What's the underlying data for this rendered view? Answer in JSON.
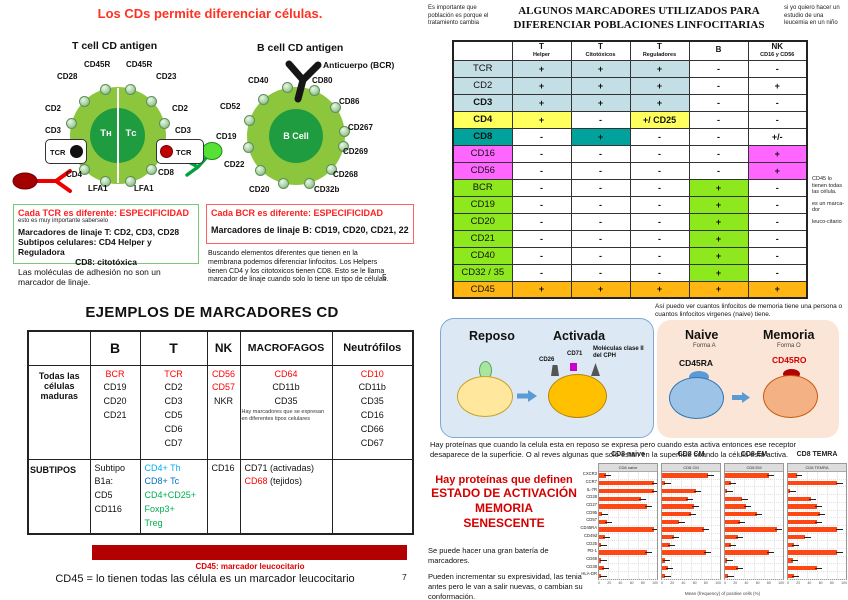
{
  "colors": {
    "title_red": "#ff3222",
    "accent_red": "#d40000",
    "cell_green": "#8cc63c",
    "cell_core_green": "#1f9b40",
    "bar_orange": "#ff4713",
    "dark_red_bar": "#b30000"
  },
  "page_left": {
    "title": "Los CDs permite diferenciar células.",
    "t_cell": {
      "heading": "T cell CD antigen",
      "center_left": "Tʜ",
      "center_right": "Tᴄ",
      "tcr_label": "TCR",
      "ring_labels": [
        "CD45R",
        "CD45R",
        "CD28",
        "CD23",
        "CD2",
        "CD2",
        "CD3",
        "CD3"
      ],
      "bottom_labels": [
        "CD4",
        "CD8",
        "LFA1",
        "LFA1"
      ]
    },
    "b_cell": {
      "heading": "B cell CD antigen",
      "antibody_label": "Anticuerpo (BCR)",
      "center": "B Cell",
      "ring_labels": [
        "CD40",
        "CD80",
        "CD52",
        "CD86",
        "CD19",
        "CD267",
        "CD269",
        "CD22",
        "CD268",
        "CD20",
        "CD32b"
      ]
    },
    "tcr_box": {
      "title": "Cada TCR es diferente: ESPECIFICIDAD",
      "subtitle": "esto es muy importante saberselo",
      "line1": "Marcadores de linaje T: CD2, CD3, CD28",
      "line2": "Subtipos celulares: CD4 Helper y Reguladora",
      "line3": "CD8: citotóxica"
    },
    "bcr_box": {
      "title": "Cada BCR es diferente: ESPECIFICIDAD",
      "line1": "Marcadores de linaje B: CD19, CD20, CD21, 22"
    },
    "adhesion_note": "Las moléculas de adhesión no son un marcador de linaje.",
    "buscando_note": "Buscando elementos diferentes que tienen en la membrana podemos diferenciar linfocitos. Los Helpers tienen CD4 y los citotoxicos tienen CD8. Esto se le llama marcador de linaje cuando solo lo tiene un tipo de células.",
    "page_number_5": "5",
    "ejemplos_title": "EJEMPLOS DE MARCADORES CD",
    "ejemplos_table": {
      "columns": [
        "",
        "B",
        "T",
        "NK",
        "MACROFAGOS",
        "Neutrófilos"
      ],
      "rows": [
        {
          "label": "Todas las células maduras",
          "cells": [
            [
              {
                "t": "BCR",
                "c": "red"
              },
              {
                "t": "CD19"
              },
              {
                "t": "CD20"
              },
              {
                "t": "CD21"
              }
            ],
            [
              {
                "t": "TCR",
                "c": "red"
              },
              {
                "t": "CD2"
              },
              {
                "t": "CD3"
              },
              {
                "t": "CD5"
              },
              {
                "t": "CD6"
              },
              {
                "t": "CD7"
              }
            ],
            [
              {
                "t": "CD56",
                "c": "red"
              },
              {
                "t": "CD57",
                "c": "red"
              },
              {
                "t": "NKR"
              }
            ],
            [
              {
                "t": "CD64",
                "c": "red"
              },
              {
                "t": "CD11b"
              },
              {
                "t": "CD35"
              },
              {
                "t": "Hay marcadores que se expresan en diferentes tipos celulares",
                "c": "note"
              }
            ],
            [
              {
                "t": "CD10",
                "c": "red"
              },
              {
                "t": "CD11b"
              },
              {
                "t": "CD35"
              },
              {
                "t": "CD16"
              },
              {
                "t": "CD66"
              },
              {
                "t": "CD67"
              }
            ]
          ]
        },
        {
          "label": "SUBTIPOS",
          "cells": [
            [
              {
                "t": "Subtipo"
              },
              {
                "t": "B1a:"
              },
              {
                "t": "CD5"
              },
              {
                "t": "CD116"
              }
            ],
            [
              {
                "t": "CD4+ Th",
                "c": "cyan"
              },
              {
                "t": "CD8+ Tc",
                "c": "blue"
              },
              {
                "t": "CD4+CD25+",
                "c": "green"
              },
              {
                "t": "Foxp3+",
                "c": "green"
              },
              {
                "t": "Treg",
                "c": "green"
              }
            ],
            [
              {
                "t": "CD16"
              }
            ],
            [
              {
                "t": "CD71 (activadas)"
              },
              {
                "parts": [
                  {
                    "t": "CD68",
                    "c": "red"
                  },
                  {
                    "t": " (tejidos)"
                  }
                ]
              }
            ],
            []
          ]
        }
      ]
    },
    "cd45_red_caption": "CD45: marcador leucocitario",
    "cd45_caption": "CD45 = lo tienen todas las célula es un marcador leucocitario",
    "page_number_7": "7"
  },
  "page_right": {
    "note_left": "Es importante que población es porque el tratamiento cambia",
    "title": "ALGUNOS MARCADORES UTILIZADOS PARA DIFERENCIAR POBLACIONES LINFOCITARIAS",
    "note_right": "si yo quiero hacer un estudio de una leucemia en un niño",
    "marker_table": {
      "headers": [
        {
          "top": "T",
          "bottom": "Helper"
        },
        {
          "top": "T",
          "bottom": "Citotóxicos"
        },
        {
          "top": "T",
          "bottom": "Reguladores"
        },
        {
          "top": "B",
          "bottom": ""
        },
        {
          "top": "NK",
          "bottom": "CD16 y CD56"
        }
      ],
      "rows": [
        {
          "label": "TCR",
          "lbg": "blue",
          "cells": [
            {
              "t": "+",
              "bg": "blue"
            },
            {
              "t": "+",
              "bg": "blue"
            },
            {
              "t": "+",
              "bg": "blue"
            },
            {
              "t": "-"
            },
            {
              "t": "-"
            }
          ]
        },
        {
          "label": "CD2",
          "lbg": "blue",
          "cells": [
            {
              "t": "+",
              "bg": "blue"
            },
            {
              "t": "+",
              "bg": "blue"
            },
            {
              "t": "+",
              "bg": "blue"
            },
            {
              "t": "-"
            },
            {
              "t": "+"
            }
          ]
        },
        {
          "label": "CD3",
          "bold": true,
          "lbg": "blue",
          "cells": [
            {
              "t": "+",
              "bg": "blue"
            },
            {
              "t": "+",
              "bg": "blue"
            },
            {
              "t": "+",
              "bg": "blue"
            },
            {
              "t": "-"
            },
            {
              "t": "-"
            }
          ]
        },
        {
          "label": "CD4",
          "bold": true,
          "lbg": "yellow",
          "cells": [
            {
              "t": "+",
              "bg": "yellow"
            },
            {
              "t": "-"
            },
            {
              "t": "+/ CD25",
              "bg": "yellow"
            },
            {
              "t": "-"
            },
            {
              "t": "-"
            }
          ]
        },
        {
          "label": "CD8",
          "bold": true,
          "lbg": "teal",
          "cells": [
            {
              "t": "-"
            },
            {
              "t": "+",
              "bg": "teal"
            },
            {
              "t": "-"
            },
            {
              "t": "-"
            },
            {
              "t": "+/-"
            }
          ]
        },
        {
          "label": "CD16",
          "lbg": "magenta",
          "cells": [
            {
              "t": "-"
            },
            {
              "t": "-"
            },
            {
              "t": "-"
            },
            {
              "t": "-"
            },
            {
              "t": "+",
              "bg": "magenta"
            }
          ]
        },
        {
          "label": "CD56",
          "lbg": "magenta",
          "cells": [
            {
              "t": "-"
            },
            {
              "t": "-"
            },
            {
              "t": "-"
            },
            {
              "t": "-"
            },
            {
              "t": "+",
              "bg": "magenta"
            }
          ]
        },
        {
          "label": "BCR",
          "lbg": "green",
          "cells": [
            {
              "t": "-"
            },
            {
              "t": "-"
            },
            {
              "t": "-"
            },
            {
              "t": "+",
              "bg": "green"
            },
            {
              "t": "-"
            }
          ]
        },
        {
          "label": "CD19",
          "lbg": "green",
          "cells": [
            {
              "t": "-"
            },
            {
              "t": "-"
            },
            {
              "t": "-"
            },
            {
              "t": "+",
              "bg": "green"
            },
            {
              "t": "-"
            }
          ]
        },
        {
          "label": "CD20",
          "lbg": "green",
          "cells": [
            {
              "t": "-"
            },
            {
              "t": "-"
            },
            {
              "t": "-"
            },
            {
              "t": "+",
              "bg": "green"
            },
            {
              "t": "-"
            }
          ]
        },
        {
          "label": "CD21",
          "lbg": "green",
          "cells": [
            {
              "t": "-"
            },
            {
              "t": "-"
            },
            {
              "t": "-"
            },
            {
              "t": "+",
              "bg": "green"
            },
            {
              "t": "-"
            }
          ]
        },
        {
          "label": "CD40",
          "lbg": "green",
          "cells": [
            {
              "t": "-"
            },
            {
              "t": "-"
            },
            {
              "t": "-"
            },
            {
              "t": "+",
              "bg": "green"
            },
            {
              "t": "-"
            }
          ]
        },
        {
          "label": "CD32 / 35",
          "lbg": "green",
          "cells": [
            {
              "t": "-"
            },
            {
              "t": "-"
            },
            {
              "t": "-"
            },
            {
              "t": "+",
              "bg": "green"
            },
            {
              "t": "-"
            }
          ]
        },
        {
          "label": "CD45",
          "lbg": "orange",
          "cells": [
            {
              "t": "+",
              "bg": "orange"
            },
            {
              "t": "+",
              "bg": "orange"
            },
            {
              "t": "+",
              "bg": "orange"
            },
            {
              "t": "+",
              "bg": "orange"
            },
            {
              "t": "+",
              "bg": "orange"
            }
          ]
        }
      ]
    },
    "side_note": [
      "CD45 lo tienen todas las célula.",
      "es un marca-dor",
      "leuco-citario"
    ],
    "asi_note": "Así puedo ver cuantos linfocitos de memoria tiene una persona o cuantos linfocitos virgenes (naive) tiene.",
    "activation": {
      "reposo_label": "Reposo",
      "activada_label": "Activada",
      "cd26": "CD26",
      "cd71": "CD71",
      "mol_label": "Moléculas clase II del CPH"
    },
    "memory": {
      "naive_label": "Naive",
      "forma_a": "Forma A",
      "memoria_label": "Memoria",
      "forma_o": "Forma O",
      "cd45ra": "CD45RA",
      "cd45ro": "CD45RO"
    },
    "hay_note": "Hay proteínas que cuando la celula esta en reposo se expresa pero cuando esta activa entonces ese receptor desaparece de la superficie. O al reves algunas que solo estan en la superficie cuando la célula esta activa.",
    "definen": {
      "l1": "Hay proteínas que definen",
      "l2": "ESTADO DE ACTIVACIÓN",
      "l3": "MEMORIA",
      "l4": "SENESCENTE"
    },
    "se_puede": "Se puede hacer una gran batería de marcadores.",
    "pueden": "Pueden incrementar su expresividad, las tenia antes pero le van a salir nuevas, o cambian su conformación."
  },
  "chart_data": {
    "type": "bar",
    "orientation": "horizontal",
    "x_range": [
      0,
      100
    ],
    "x_ticks": [
      0,
      20,
      40,
      60,
      80,
      100
    ],
    "xlabel_approx": "Mean (frequency) of positive cells (%)",
    "y_labels_approx": [
      "CXCR3",
      "CCR7",
      "IL-7R",
      "CD28",
      "CD27",
      "CD95",
      "CD57",
      "CD45RA",
      "CD49d",
      "CD25",
      "PD-1",
      "CD69",
      "CD38",
      "HLA-DR"
    ],
    "panels": [
      {
        "title": "CD8 naive",
        "values": [
          12,
          95,
          95,
          72,
          82,
          6,
          14,
          95,
          10,
          4,
          82,
          4,
          8,
          4
        ]
      },
      {
        "title": "CD8 CM",
        "values": [
          80,
          6,
          58,
          45,
          55,
          50,
          30,
          72,
          20,
          14,
          75,
          5,
          10,
          6
        ]
      },
      {
        "title": "CD8 EM",
        "values": [
          75,
          10,
          4,
          30,
          36,
          55,
          25,
          90,
          22,
          10,
          75,
          4,
          22,
          6
        ]
      },
      {
        "title": "CD8 TEMRA",
        "values": [
          16,
          85,
          4,
          40,
          50,
          55,
          50,
          85,
          30,
          10,
          85,
          8,
          50,
          10
        ]
      }
    ]
  }
}
